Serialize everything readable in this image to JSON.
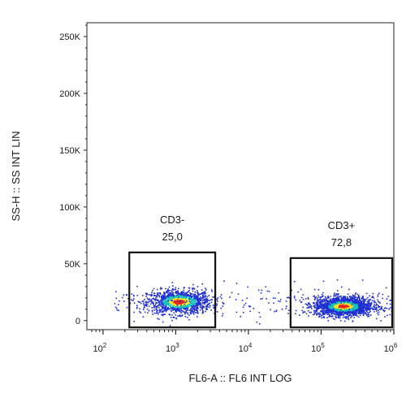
{
  "chart_data": {
    "type": "scatter",
    "title": "",
    "xlabel": "FL6-A :: FL6 INT LOG",
    "ylabel": "SS-H :: SS INT LIN",
    "xscale": "log",
    "xlim": [
      60,
      1000000
    ],
    "ylim": [
      -8000,
      262144
    ],
    "grid": false,
    "x_ticks": [
      {
        "base": "10",
        "exp": "2",
        "value": 100
      },
      {
        "base": "10",
        "exp": "3",
        "value": 1000
      },
      {
        "base": "10",
        "exp": "4",
        "value": 10000
      },
      {
        "base": "10",
        "exp": "5",
        "value": 100000
      },
      {
        "base": "10",
        "exp": "6",
        "value": 1000000
      }
    ],
    "y_ticks": [
      {
        "label": "250K",
        "value": 250000
      },
      {
        "label": "200K",
        "value": 200000
      },
      {
        "label": "150K",
        "value": 150000
      },
      {
        "label": "100K",
        "value": 100000
      },
      {
        "label": "50K",
        "value": 50000
      },
      {
        "label": "0",
        "value": 0
      }
    ],
    "gates": [
      {
        "name": "CD3-",
        "percent": "25,0",
        "x_range": [
          230,
          3500
        ],
        "y_range": [
          -6000,
          60000
        ]
      },
      {
        "name": "CD3+",
        "percent": "72,8",
        "x_range": [
          38000,
          950000
        ],
        "y_range": [
          -6000,
          55000
        ]
      }
    ],
    "populations": [
      {
        "name": "CD3-",
        "x_center": 1100,
        "y_center": 17000,
        "share": 0.25
      },
      {
        "name": "CD3+",
        "x_center": 200000,
        "y_center": 13000,
        "share": 0.728
      }
    ],
    "colors": {
      "density_low": "#1f2fd0",
      "density_mid": "#18c0b8",
      "density_high": "#ffe51a",
      "density_peak": "#e8231c",
      "gate_stroke": "#111111",
      "axis": "#222222"
    }
  }
}
